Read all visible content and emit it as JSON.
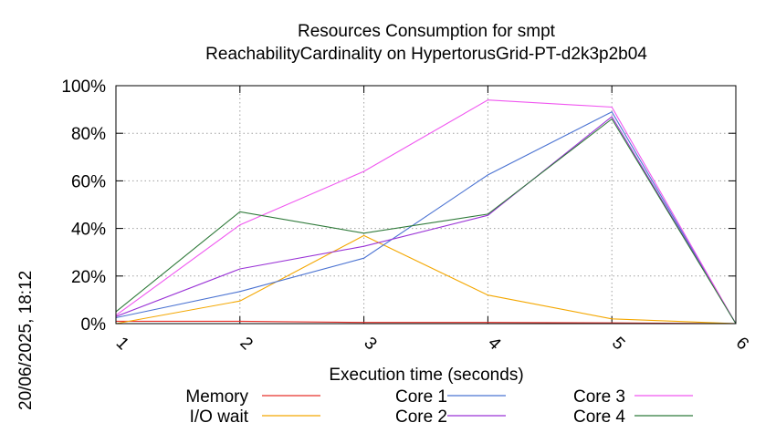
{
  "chart_data": {
    "type": "line",
    "title": "Resources Consumption for smpt",
    "subtitle": "ReachabilityCardinality on HypertorusGrid-PT-d2k3p2b04",
    "xlabel": "Execution time (seconds)",
    "ylabel": "",
    "side_label": "20/06/2025, 18:12",
    "x": [
      1,
      2,
      3,
      4,
      5,
      6
    ],
    "x_ticks": [
      "1",
      "2",
      "3",
      "4",
      "5",
      "6"
    ],
    "xlim": [
      1,
      6
    ],
    "ylim": [
      0,
      100
    ],
    "y_ticks": [
      "0%",
      "20%",
      "40%",
      "60%",
      "80%",
      "100%"
    ],
    "y_tick_values": [
      0,
      20,
      40,
      60,
      80,
      100
    ],
    "grid": true,
    "legend_position": "bottom",
    "series": [
      {
        "name": "Memory",
        "color": "#e8302a",
        "values": [
          1,
          1,
          0.5,
          0.5,
          0.3,
          0
        ]
      },
      {
        "name": "I/O wait",
        "color": "#f4a700",
        "values": [
          0,
          9.5,
          37,
          12,
          2,
          0
        ]
      },
      {
        "name": "Core 1",
        "color": "#4b73d2",
        "values": [
          2.5,
          13.5,
          27.5,
          62.5,
          89,
          0
        ]
      },
      {
        "name": "Core 2",
        "color": "#9a33d6",
        "values": [
          3,
          23,
          32.5,
          45.5,
          87,
          0
        ]
      },
      {
        "name": "Core 3",
        "color": "#f057f0",
        "values": [
          3.5,
          41.5,
          64,
          94,
          91,
          0
        ]
      },
      {
        "name": "Core 4",
        "color": "#2f7a3a",
        "values": [
          5,
          47,
          38,
          46,
          86,
          0
        ]
      }
    ]
  }
}
